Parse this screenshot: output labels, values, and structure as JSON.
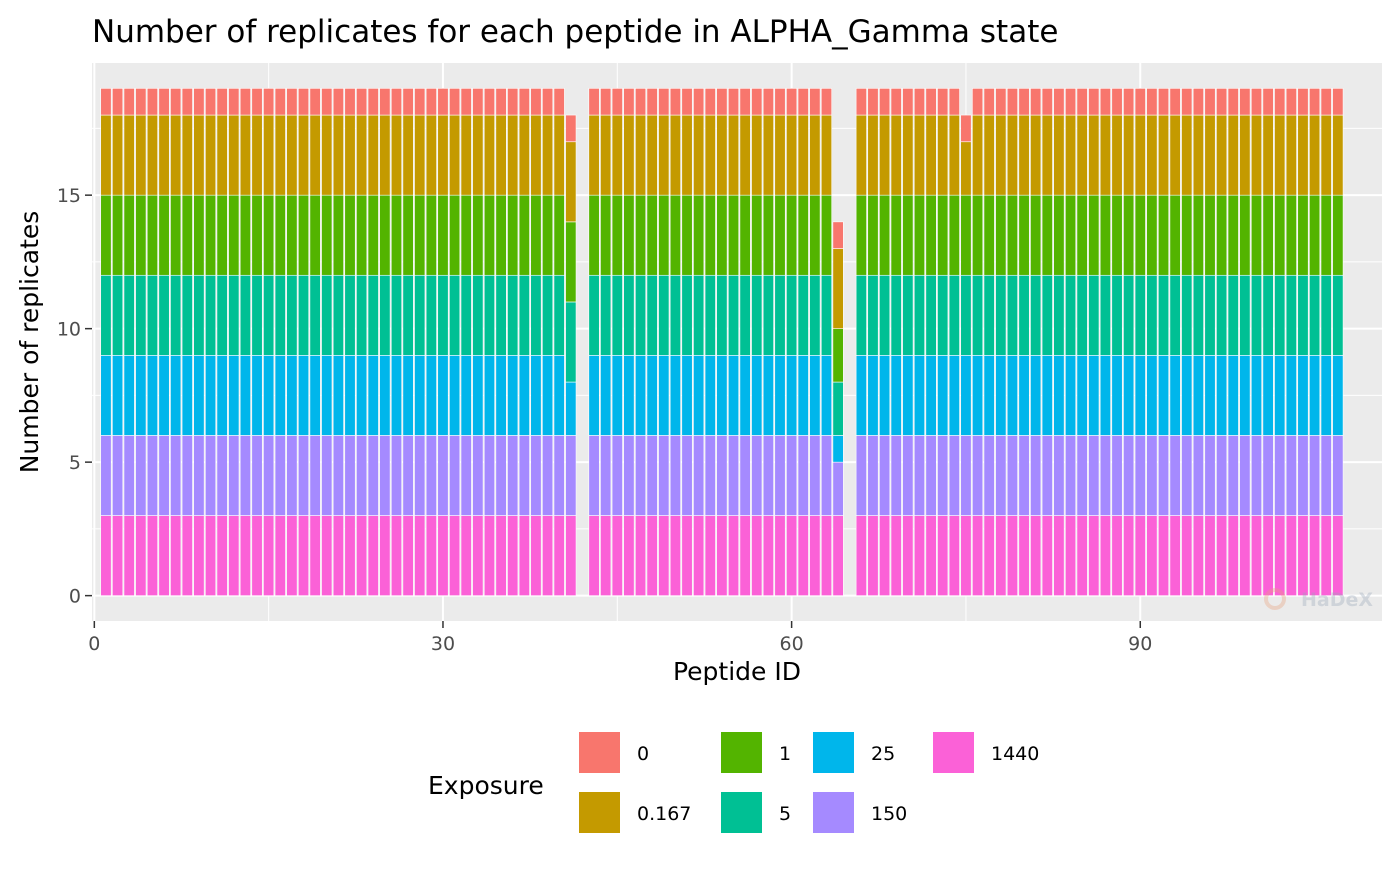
{
  "chart_data": {
    "type": "bar",
    "stacked": true,
    "title": "Number of replicates for each peptide in ALPHA_Gamma state",
    "xlabel": "Peptide ID",
    "ylabel": "Number of replicates",
    "xlim": [
      -0.2,
      110.8
    ],
    "ylim": [
      -0.95,
      19.95
    ],
    "x_ticks": [
      0,
      30,
      60,
      90
    ],
    "y_ticks": [
      0,
      5,
      10,
      15
    ],
    "grid": true,
    "peptide_ids": {
      "from": 1,
      "to": 107
    },
    "default_stack": [
      {
        "exposure": "1440",
        "replicates": 3
      },
      {
        "exposure": "150",
        "replicates": 3
      },
      {
        "exposure": "25",
        "replicates": 3
      },
      {
        "exposure": "5",
        "replicates": 3
      },
      {
        "exposure": "1",
        "replicates": 3
      },
      {
        "exposure": "0.167",
        "replicates": 3
      },
      {
        "exposure": "0",
        "replicates": 1
      }
    ],
    "exceptions": [
      {
        "peptide_id": 41,
        "stack": [
          {
            "exposure": "1440",
            "replicates": 3
          },
          {
            "exposure": "150",
            "replicates": 3
          },
          {
            "exposure": "25",
            "replicates": 2
          },
          {
            "exposure": "5",
            "replicates": 3
          },
          {
            "exposure": "1",
            "replicates": 3
          },
          {
            "exposure": "0.167",
            "replicates": 3
          },
          {
            "exposure": "0",
            "replicates": 1
          }
        ]
      },
      {
        "peptide_id": 42,
        "stack": []
      },
      {
        "peptide_id": 64,
        "stack": [
          {
            "exposure": "1440",
            "replicates": 3
          },
          {
            "exposure": "150",
            "replicates": 2
          },
          {
            "exposure": "25",
            "replicates": 1
          },
          {
            "exposure": "5",
            "replicates": 2
          },
          {
            "exposure": "1",
            "replicates": 2
          },
          {
            "exposure": "0.167",
            "replicates": 3
          },
          {
            "exposure": "0",
            "replicates": 1
          }
        ]
      },
      {
        "peptide_id": 65,
        "stack": []
      },
      {
        "peptide_id": 75,
        "stack": [
          {
            "exposure": "1440",
            "replicates": 3
          },
          {
            "exposure": "150",
            "replicates": 3
          },
          {
            "exposure": "25",
            "replicates": 3
          },
          {
            "exposure": "5",
            "replicates": 3
          },
          {
            "exposure": "1",
            "replicates": 3
          },
          {
            "exposure": "0.167",
            "replicates": 2
          },
          {
            "exposure": "0",
            "replicates": 1
          }
        ]
      }
    ],
    "legend": {
      "title": "Exposure",
      "position": "bottom",
      "entries": [
        {
          "label": "0",
          "color": "#F8766D"
        },
        {
          "label": "0.167",
          "color": "#C49A00"
        },
        {
          "label": "1",
          "color": "#53B400"
        },
        {
          "label": "5",
          "color": "#00C094"
        },
        {
          "label": "25",
          "color": "#00B6EB"
        },
        {
          "label": "150",
          "color": "#A58AFF"
        },
        {
          "label": "1440",
          "color": "#FB61D7"
        }
      ]
    },
    "watermark": "HaDeX"
  }
}
